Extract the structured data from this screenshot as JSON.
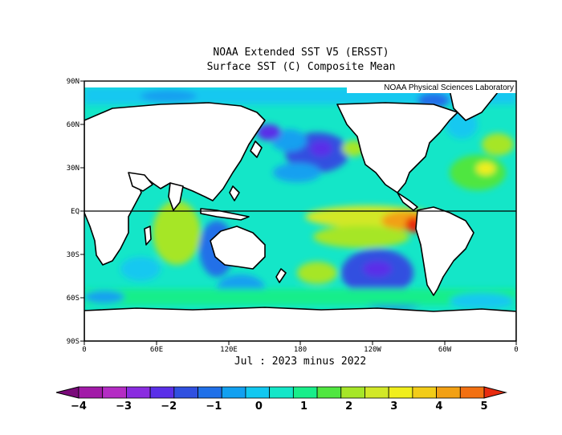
{
  "title_line1": "NOAA Extended SST V5 (ERSST)",
  "title_line2": "Surface SST (C) Composite Mean",
  "credit": "NOAA Physical Sciences Laboratory",
  "subtitle": "Jul : 2023 minus 2022",
  "axes": {
    "lat_ticks": [
      "90N",
      "60N",
      "30N",
      "EQ",
      "30S",
      "60S",
      "90S"
    ],
    "lon_ticks": [
      "0",
      "60E",
      "120E",
      "180",
      "120W",
      "60W",
      "0"
    ]
  },
  "colorbar": {
    "labels": [
      "-4",
      "-3",
      "-2",
      "-1",
      "0",
      "1",
      "2",
      "3",
      "4",
      "5"
    ],
    "colors": [
      "#7a0a7a",
      "#a21aa8",
      "#b42cc4",
      "#8a2ce0",
      "#5a2fe8",
      "#3050e0",
      "#2070e8",
      "#12a0f0",
      "#12c8f0",
      "#14e6c8",
      "#18ee8a",
      "#50e640",
      "#a6e628",
      "#d2e828",
      "#f0ee1c",
      "#f2cc18",
      "#f2a014",
      "#f27012",
      "#e82c10"
    ]
  },
  "chart_data": {
    "type": "heatmap",
    "title": "NOAA Extended SST V5 (ERSST) — Surface SST (C) Composite Mean",
    "subtitle": "Jul : 2023 minus 2022",
    "xlabel": "",
    "ylabel": "",
    "xlim": [
      "0",
      "0"
    ],
    "ylim": [
      "90S",
      "90N"
    ],
    "color_scale": {
      "min": -4,
      "max": 5,
      "units": "C"
    }
  }
}
